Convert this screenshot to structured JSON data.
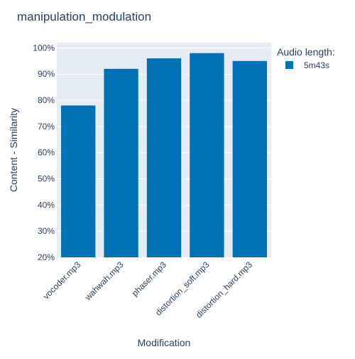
{
  "chart_data": {
    "type": "bar",
    "title": "manipulation_modulation",
    "xlabel": "Modification",
    "ylabel": "Content - Similarity",
    "categories": [
      "vocoder.mp3",
      "wahwah.mp3",
      "phaser.mp3",
      "distortion_soft.mp3",
      "distortion_hard.mp3"
    ],
    "series": [
      {
        "name": "5m43s",
        "values": [
          78,
          92,
          96,
          98,
          95
        ]
      }
    ],
    "ylim": [
      20,
      102
    ],
    "yticks": [
      20,
      30,
      40,
      50,
      60,
      70,
      80,
      90,
      100
    ],
    "ytick_suffix": "%",
    "legend": {
      "title": "Audio length:",
      "placement": "top-right"
    },
    "grid": true,
    "colors": {
      "bar": "#0071b2",
      "plot_bg": "#e5ecf6",
      "grid": "#ffffff",
      "text": "#2a3f5f"
    }
  }
}
